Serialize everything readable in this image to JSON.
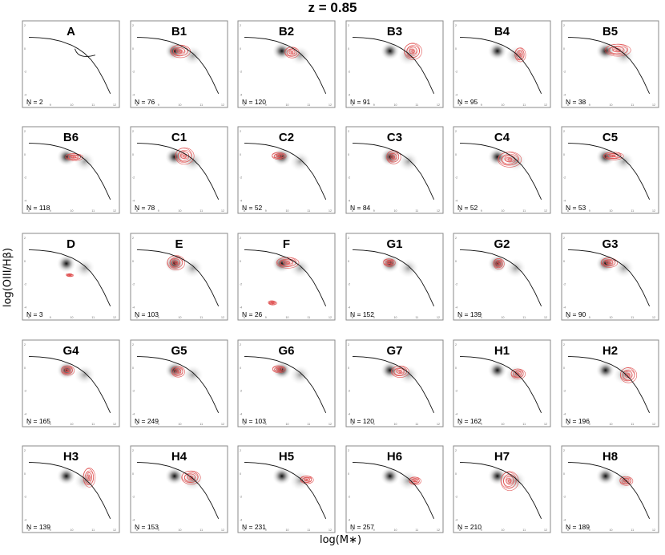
{
  "figure": {
    "title": "z = 0.85",
    "xlabel": "log(M∗)",
    "ylabel": "log(OIII/Hβ)"
  },
  "colors": {
    "background_density": "#1a1a1a",
    "subgroup_contours": "#e05555",
    "dividing_curve": "#111111",
    "panel_border": "#8a8a8a"
  },
  "chart_data": {
    "type": "contour",
    "grid": false,
    "xlim": [
      8,
      12
    ],
    "ylim": [
      -4.4,
      2
    ],
    "xticks": [
      "8",
      "9",
      "10",
      "11",
      "12"
    ],
    "yticks": [
      "2",
      "0",
      "-2",
      "-4"
    ],
    "dividing_curve": {
      "x": [
        8.0,
        8.5,
        9.0,
        9.5,
        10.0,
        10.3,
        10.6,
        10.9,
        11.2,
        11.5,
        11.8
      ],
      "y": [
        1.0,
        0.95,
        0.85,
        0.65,
        0.3,
        0.0,
        -0.4,
        -0.95,
        -1.7,
        -2.7,
        -3.9
      ]
    },
    "background_population": {
      "center": [
        9.75,
        -0.2
      ],
      "secondary_center": [
        10.6,
        -0.6
      ]
    },
    "panels": [
      {
        "label": "A",
        "n": "N = 2",
        "contours": [
          {
            "cx": 10.3,
            "cy": -0.3,
            "sx": 0.55,
            "sy": 0.5
          }
        ],
        "legend_line": true
      },
      {
        "label": "B1",
        "n": "N = 76",
        "contours": [
          {
            "cx": 10.0,
            "cy": -0.2,
            "sx": 0.85,
            "sy": 1.0
          }
        ]
      },
      {
        "label": "B2",
        "n": "N = 120",
        "contours": [
          {
            "cx": 10.2,
            "cy": -0.3,
            "sx": 0.6,
            "sy": 0.85
          }
        ]
      },
      {
        "label": "B3",
        "n": "N = 91",
        "contours": [
          {
            "cx": 10.8,
            "cy": -0.2,
            "sx": 0.75,
            "sy": 1.3
          }
        ]
      },
      {
        "label": "B4",
        "n": "N = 95",
        "contours": [
          {
            "cx": 10.8,
            "cy": -0.5,
            "sx": 0.45,
            "sy": 1.1
          }
        ]
      },
      {
        "label": "B5",
        "n": "N = 38",
        "contours": [
          {
            "cx": 10.3,
            "cy": -0.1,
            "sx": 1.1,
            "sy": 0.95
          }
        ]
      },
      {
        "label": "B6",
        "n": "N = 118",
        "contours": [
          {
            "cx": 10.1,
            "cy": -0.2,
            "sx": 0.75,
            "sy": 0.55
          }
        ]
      },
      {
        "label": "C1",
        "n": "N = 78",
        "contours": [
          {
            "cx": 10.2,
            "cy": -0.1,
            "sx": 0.8,
            "sy": 1.3
          }
        ]
      },
      {
        "label": "C2",
        "n": "N = 52",
        "contours": [
          {
            "cx": 9.6,
            "cy": -0.1,
            "sx": 0.6,
            "sy": 0.55
          }
        ]
      },
      {
        "label": "C3",
        "n": "N = 84",
        "contours": [
          {
            "cx": 9.9,
            "cy": -0.2,
            "sx": 0.6,
            "sy": 1.05
          }
        ]
      },
      {
        "label": "C4",
        "n": "N = 52",
        "contours": [
          {
            "cx": 10.3,
            "cy": -0.4,
            "sx": 1.0,
            "sy": 1.2
          }
        ]
      },
      {
        "label": "C5",
        "n": "N = 53",
        "contours": [
          {
            "cx": 10.1,
            "cy": -0.1,
            "sx": 0.85,
            "sy": 0.6
          }
        ]
      },
      {
        "label": "D",
        "n": "N = 3",
        "contours": [
          {
            "cx": 9.9,
            "cy": -1.2,
            "sx": 0.3,
            "sy": 0.2
          }
        ]
      },
      {
        "label": "E",
        "n": "N = 103",
        "contours": [
          {
            "cx": 9.8,
            "cy": -0.1,
            "sx": 0.75,
            "sy": 1.15
          }
        ]
      },
      {
        "label": "F",
        "n": "N = 26",
        "contours": [
          {
            "cx": 10.0,
            "cy": -0.1,
            "sx": 0.95,
            "sy": 0.85
          },
          {
            "cx": 9.3,
            "cy": -3.6,
            "sx": 0.35,
            "sy": 0.3
          }
        ]
      },
      {
        "label": "G1",
        "n": "N = 152",
        "contours": [
          {
            "cx": 9.7,
            "cy": -0.1,
            "sx": 0.5,
            "sy": 0.6
          }
        ]
      },
      {
        "label": "G2",
        "n": "N = 139",
        "contours": [
          {
            "cx": 9.8,
            "cy": -0.2,
            "sx": 0.45,
            "sy": 0.85
          }
        ]
      },
      {
        "label": "G3",
        "n": "N = 90",
        "contours": [
          {
            "cx": 9.9,
            "cy": -0.1,
            "sx": 0.7,
            "sy": 0.75
          }
        ]
      },
      {
        "label": "G4",
        "n": "N = 165",
        "contours": [
          {
            "cx": 9.8,
            "cy": -0.2,
            "sx": 0.55,
            "sy": 0.75
          }
        ]
      },
      {
        "label": "G5",
        "n": "N = 249",
        "contours": [
          {
            "cx": 9.9,
            "cy": -0.3,
            "sx": 0.55,
            "sy": 0.85
          }
        ]
      },
      {
        "label": "G6",
        "n": "N = 103",
        "contours": [
          {
            "cx": 9.6,
            "cy": -0.1,
            "sx": 0.55,
            "sy": 0.55
          }
        ]
      },
      {
        "label": "G7",
        "n": "N = 120",
        "contours": [
          {
            "cx": 10.2,
            "cy": -0.3,
            "sx": 0.75,
            "sy": 0.9
          }
        ]
      },
      {
        "label": "H1",
        "n": "N = 162",
        "contours": [
          {
            "cx": 10.7,
            "cy": -0.5,
            "sx": 0.6,
            "sy": 0.8
          }
        ]
      },
      {
        "label": "H2",
        "n": "N = 196",
        "contours": [
          {
            "cx": 10.8,
            "cy": -0.6,
            "sx": 0.7,
            "sy": 1.2
          }
        ]
      },
      {
        "label": "H3",
        "n": "N = 139",
        "contours": [
          {
            "cx": 10.8,
            "cy": -0.3,
            "sx": 0.5,
            "sy": 1.5
          }
        ]
      },
      {
        "label": "H4",
        "n": "N = 153",
        "contours": [
          {
            "cx": 10.5,
            "cy": -0.3,
            "sx": 0.8,
            "sy": 1.05
          }
        ]
      },
      {
        "label": "H5",
        "n": "N = 231",
        "contours": [
          {
            "cx": 10.9,
            "cy": -0.5,
            "sx": 0.55,
            "sy": 0.6
          }
        ]
      },
      {
        "label": "H6",
        "n": "N = 257",
        "contours": [
          {
            "cx": 10.9,
            "cy": -0.6,
            "sx": 0.5,
            "sy": 0.6
          }
        ]
      },
      {
        "label": "H7",
        "n": "N = 210",
        "contours": [
          {
            "cx": 10.3,
            "cy": -0.6,
            "sx": 0.75,
            "sy": 1.5
          }
        ]
      },
      {
        "label": "H8",
        "n": "N = 189",
        "contours": [
          {
            "cx": 10.7,
            "cy": -0.6,
            "sx": 0.55,
            "sy": 0.7
          }
        ]
      }
    ]
  }
}
